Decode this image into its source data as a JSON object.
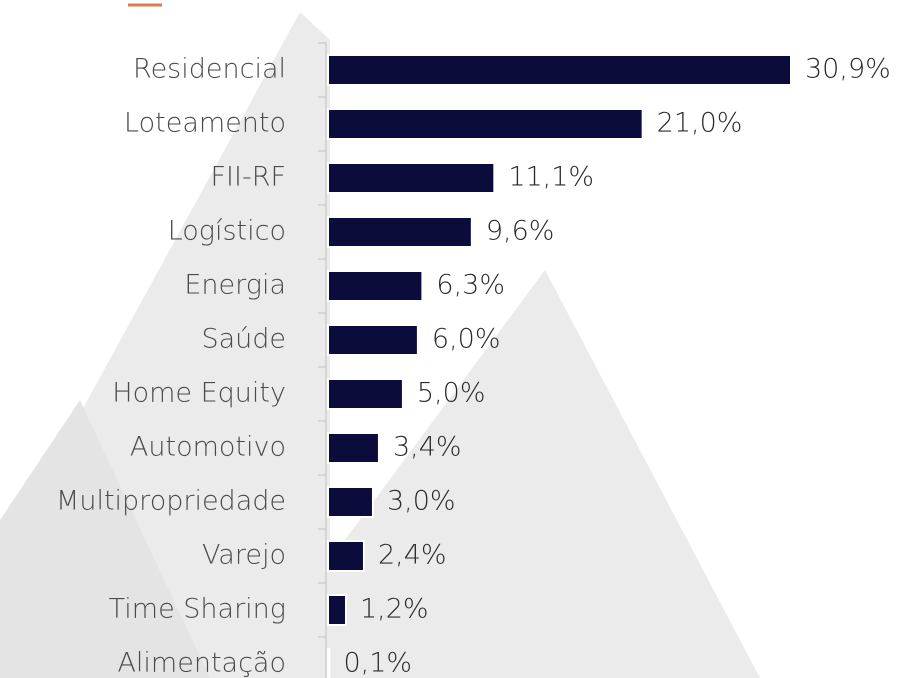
{
  "chart_data": {
    "type": "bar",
    "orientation": "horizontal",
    "categories": [
      "Residencial",
      "Loteamento",
      "FII-RF",
      "Logístico",
      "Energia",
      "Saúde",
      "Home Equity",
      "Automotivo",
      "Multipropriedade",
      "Varejo",
      "Time Sharing",
      "Alimentação"
    ],
    "values": [
      30.9,
      21.0,
      11.1,
      9.6,
      6.3,
      6.0,
      5.0,
      3.4,
      3.0,
      2.4,
      1.2,
      0.1
    ],
    "value_labels": [
      "30,9%",
      "21,0%",
      "11,1%",
      "9,6%",
      "6,3%",
      "6,0%",
      "5,0%",
      "3,4%",
      "3,0%",
      "2,4%",
      "1,2%",
      "0,1%"
    ],
    "color": "#0c0c3c"
  }
}
